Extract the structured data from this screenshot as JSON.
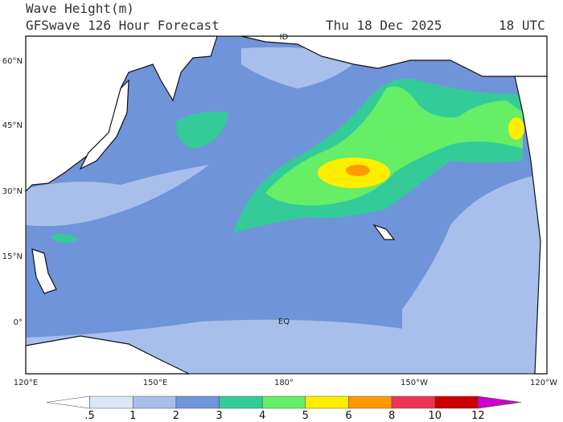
{
  "header": {
    "title": "Wave Height(m)",
    "subtitle": "GFSwave 126 Hour Forecast",
    "date": "Thu 18 Dec 2025",
    "time": "18 UTC"
  },
  "map": {
    "lat_labels": [
      "60°N",
      "45°N",
      "30°N",
      "15°N",
      "0°"
    ],
    "lon_labels": [
      "120°E",
      "150°E",
      "180°",
      "150°W",
      "120°W"
    ],
    "annotations": [
      "ID",
      "EQ"
    ]
  },
  "legend": {
    "ticks": [
      ".5",
      "1",
      "2",
      "3",
      "4",
      "5",
      "6",
      "8",
      "10",
      "12"
    ],
    "colors": [
      "#ffffff",
      "#dce6f5",
      "#a7bfea",
      "#6f94da",
      "#33cc99",
      "#66ee66",
      "#ffee00",
      "#ff9900",
      "#ee3355",
      "#cc0000",
      "#cc00cc"
    ]
  }
}
